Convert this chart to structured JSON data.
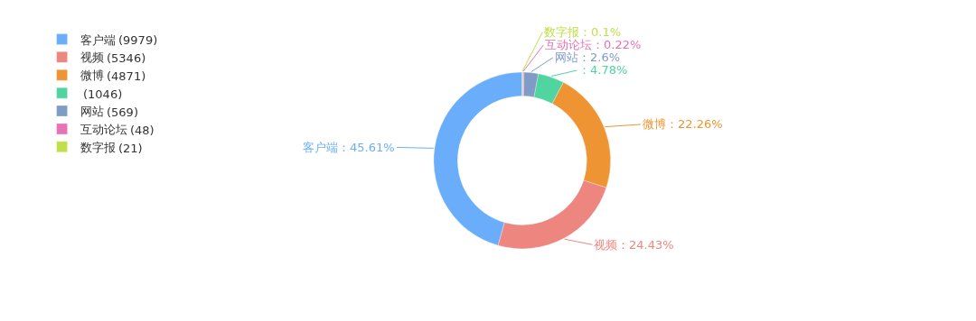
{
  "chart_data": {
    "type": "donut",
    "categories": [
      "客户端",
      "视频",
      "微博",
      null,
      "网站",
      "互动论坛",
      "数字报"
    ],
    "values": [
      45.61,
      24.43,
      22.26,
      4.78,
      2.6,
      0.22,
      0.1
    ],
    "colors": [
      "#6aaefb",
      "#ee8680",
      "#ef9433",
      "#50d4a0",
      "#7f9cc7",
      "#e872b5",
      "#bfe04a"
    ],
    "value_labels": [
      "：45.61%",
      "：24.43%",
      "：22.26%",
      "：4.78%",
      "：2.6%",
      "：0.22%",
      "：0.1%"
    ],
    "annotations": [
      "(9979)",
      "(5346)",
      "(4871)",
      "(1046)",
      "(569)",
      "(48)",
      "(21)"
    ],
    "legend": "top left"
  }
}
